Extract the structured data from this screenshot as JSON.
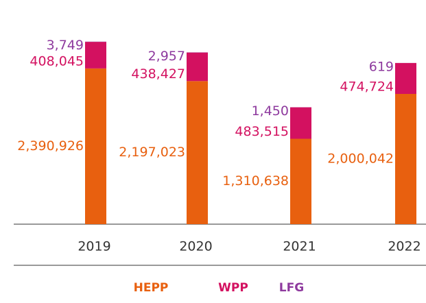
{
  "chart_data": {
    "type": "stacked-bar",
    "categories": [
      "2019",
      "2020",
      "2021",
      "2022"
    ],
    "series": [
      {
        "name": "HEPP",
        "color": "#e8600f",
        "values": [
          2390926,
          2197023,
          1310638,
          2000042
        ],
        "value_labels": [
          "2,390,926",
          "2,197,023",
          "1,310,638",
          "2,000,042"
        ]
      },
      {
        "name": "WPP",
        "color": "#d31160",
        "values": [
          408045,
          438427,
          483515,
          474724
        ],
        "value_labels": [
          "408,045",
          "438,427",
          "483,515",
          "474,724"
        ]
      },
      {
        "name": "LFG",
        "color": "#8e3a9e",
        "values": [
          3749,
          2957,
          1450,
          619
        ],
        "value_labels": [
          "3,749",
          "2,957",
          "1,450",
          "619"
        ]
      }
    ],
    "ylim": [
      0,
      3000000
    ]
  }
}
